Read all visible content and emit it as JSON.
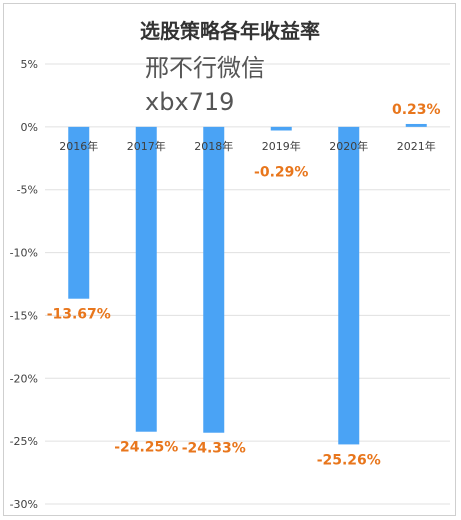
{
  "chart_data": {
    "type": "bar",
    "title": "选股策略各年收益率",
    "categories": [
      "2016年",
      "2017年",
      "2018年",
      "2019年",
      "2020年",
      "2021年"
    ],
    "values": [
      -13.67,
      -24.25,
      -24.33,
      -0.29,
      -25.26,
      0.23
    ],
    "data_labels": [
      "-13.67%",
      "-24.25%",
      "-24.33%",
      "-0.29%",
      "-25.26%",
      "0.23%"
    ],
    "ylim": [
      -30,
      5
    ],
    "yticks": [
      5,
      0,
      -5,
      -10,
      -15,
      -20,
      -25,
      -30
    ],
    "ytick_labels": [
      "5%",
      "0%",
      "-5%",
      "-10%",
      "-15%",
      "-20%",
      "-25%",
      "-30%"
    ],
    "grid": true,
    "legend": "none",
    "bar_color": "#4aa3f5",
    "label_color": "#e8761c",
    "grid_color": "#e0e0e0"
  },
  "watermark": {
    "line1": "邢不行微信",
    "line2": "xbx719"
  }
}
